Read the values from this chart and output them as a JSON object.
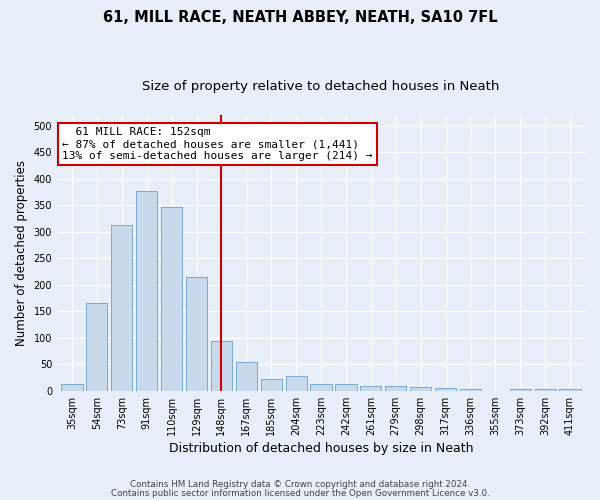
{
  "title": "61, MILL RACE, NEATH ABBEY, NEATH, SA10 7FL",
  "subtitle": "Size of property relative to detached houses in Neath",
  "xlabel": "Distribution of detached houses by size in Neath",
  "ylabel": "Number of detached properties",
  "categories": [
    "35sqm",
    "54sqm",
    "73sqm",
    "91sqm",
    "110sqm",
    "129sqm",
    "148sqm",
    "167sqm",
    "185sqm",
    "204sqm",
    "223sqm",
    "242sqm",
    "261sqm",
    "279sqm",
    "298sqm",
    "317sqm",
    "336sqm",
    "355sqm",
    "373sqm",
    "392sqm",
    "411sqm"
  ],
  "values": [
    13,
    165,
    313,
    377,
    346,
    215,
    93,
    55,
    23,
    28,
    13,
    13,
    10,
    9,
    7,
    5,
    3,
    0,
    3,
    3,
    3
  ],
  "bar_color": "#c9d9ec",
  "bar_edge_color": "#7aaacf",
  "highlight_index": 6,
  "highlight_color": "#cc0000",
  "annotation_line1": "  61 MILL RACE: 152sqm",
  "annotation_line2": "← 87% of detached houses are smaller (1,441)",
  "annotation_line3": "13% of semi-detached houses are larger (214) →",
  "annotation_box_color": "#ffffff",
  "annotation_box_edge_color": "#cc0000",
  "ylim": [
    0,
    520
  ],
  "yticks": [
    0,
    50,
    100,
    150,
    200,
    250,
    300,
    350,
    400,
    450,
    500
  ],
  "footer1": "Contains HM Land Registry data © Crown copyright and database right 2024.",
  "footer2": "Contains public sector information licensed under the Open Government Licence v3.0.",
  "bg_color": "#e8eef7",
  "title_fontsize": 10.5,
  "subtitle_fontsize": 9.5,
  "tick_fontsize": 7,
  "ylabel_fontsize": 8.5,
  "xlabel_fontsize": 9,
  "annotation_fontsize": 8
}
